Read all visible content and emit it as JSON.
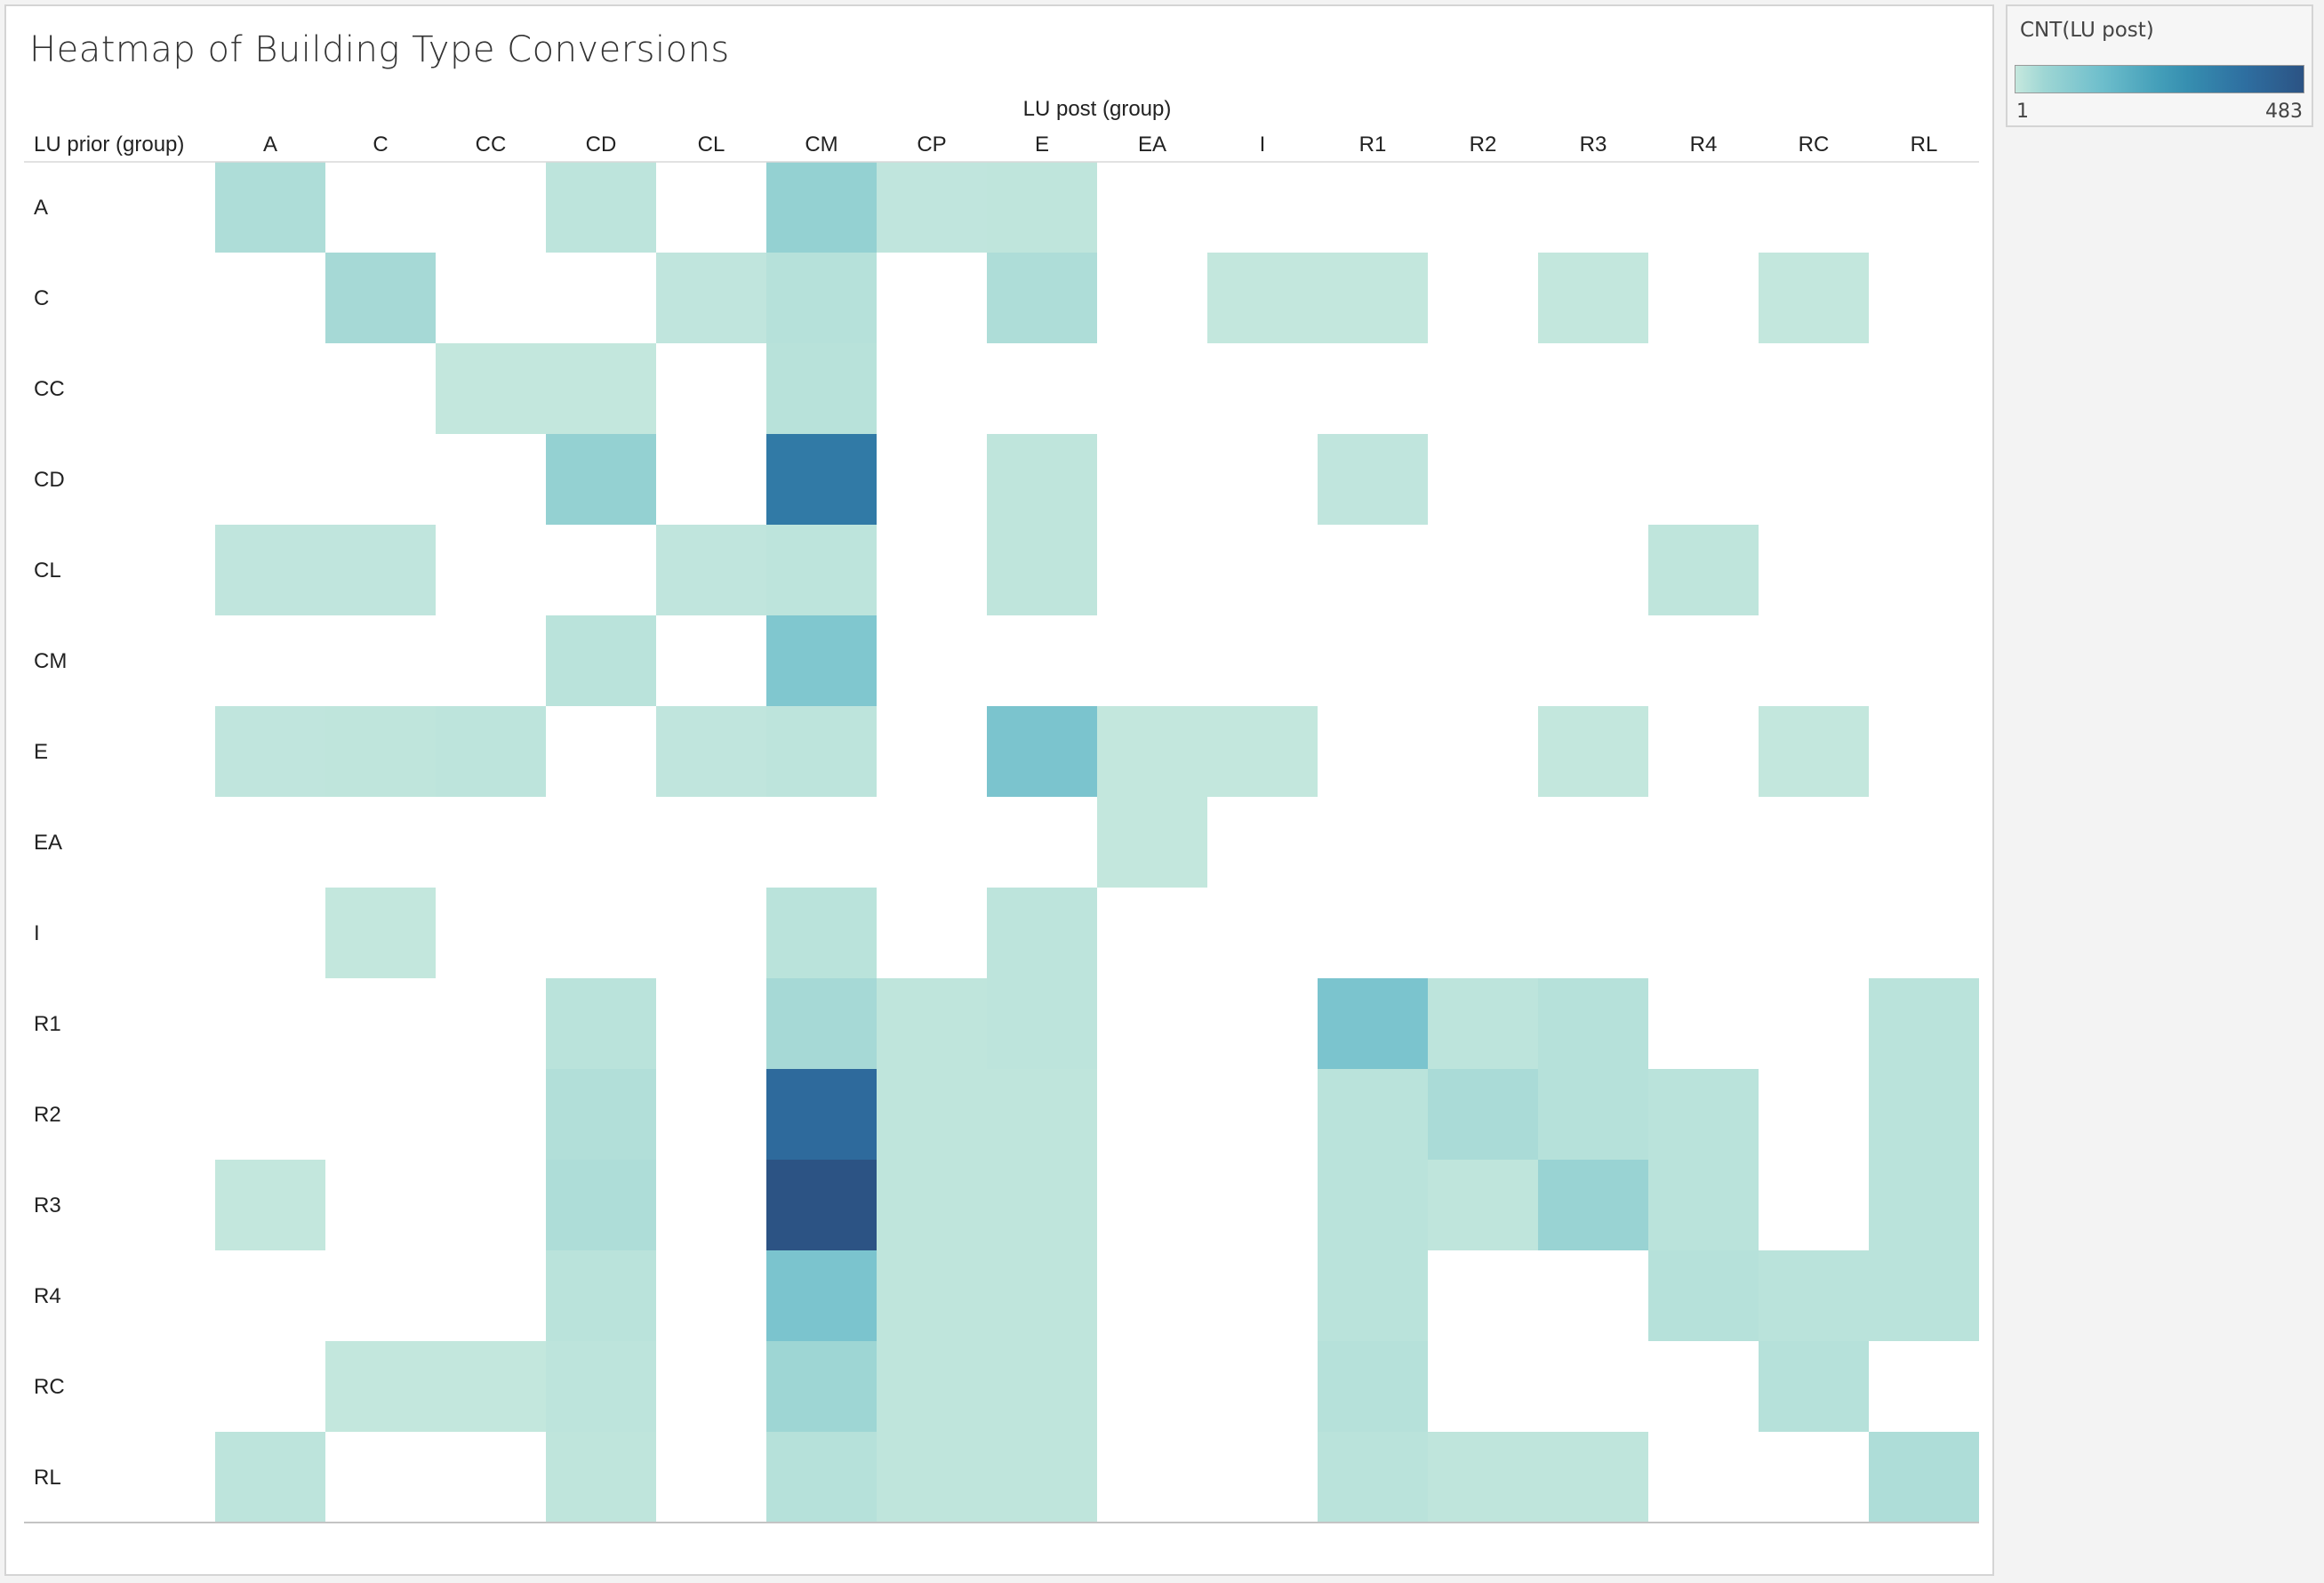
{
  "chart_data": {
    "type": "heatmap",
    "title": "Heatmap of Building Type Conversions",
    "xlabel": "LU post (group)",
    "ylabel": "LU prior (group)",
    "x_categories": [
      "A",
      "C",
      "CC",
      "CD",
      "CL",
      "CM",
      "CP",
      "E",
      "EA",
      "I",
      "R1",
      "R2",
      "R3",
      "R4",
      "RC",
      "RL"
    ],
    "y_categories": [
      "A",
      "C",
      "CC",
      "CD",
      "CL",
      "CM",
      "E",
      "EA",
      "I",
      "R1",
      "R2",
      "R3",
      "R4",
      "RC",
      "RL"
    ],
    "color_measure": "CNT(LU post)",
    "color_range": [
      1,
      483
    ],
    "color_min_hex": "#c6e8de",
    "color_max_hex": "#2c5384",
    "values": [
      [
        30,
        null,
        null,
        12,
        null,
        70,
        8,
        10,
        null,
        null,
        null,
        null,
        null,
        null,
        null,
        null
      ],
      [
        null,
        40,
        null,
        null,
        8,
        20,
        null,
        30,
        null,
        5,
        5,
        null,
        5,
        null,
        5,
        null
      ],
      [
        null,
        null,
        5,
        5,
        null,
        18,
        null,
        null,
        null,
        null,
        null,
        null,
        null,
        null,
        null,
        null
      ],
      [
        null,
        null,
        null,
        70,
        null,
        350,
        null,
        10,
        null,
        null,
        8,
        null,
        null,
        null,
        null,
        null
      ],
      [
        8,
        8,
        null,
        null,
        8,
        12,
        null,
        10,
        null,
        null,
        null,
        null,
        null,
        10,
        null,
        null
      ],
      [
        null,
        null,
        null,
        15,
        null,
        110,
        null,
        null,
        null,
        null,
        null,
        null,
        null,
        null,
        null,
        null
      ],
      [
        8,
        10,
        12,
        null,
        8,
        12,
        null,
        120,
        5,
        5,
        null,
        null,
        5,
        null,
        5,
        null
      ],
      [
        null,
        null,
        null,
        null,
        null,
        null,
        null,
        null,
        5,
        null,
        null,
        null,
        null,
        null,
        null,
        null
      ],
      [
        null,
        5,
        null,
        null,
        null,
        15,
        null,
        12,
        null,
        null,
        null,
        null,
        null,
        null,
        null,
        null
      ],
      [
        null,
        null,
        null,
        15,
        null,
        40,
        10,
        12,
        null,
        null,
        120,
        12,
        20,
        null,
        null,
        15
      ],
      [
        null,
        null,
        null,
        25,
        null,
        400,
        10,
        10,
        null,
        null,
        15,
        35,
        20,
        15,
        null,
        15
      ],
      [
        5,
        null,
        null,
        30,
        null,
        483,
        10,
        10,
        null,
        null,
        15,
        10,
        60,
        15,
        null,
        15
      ],
      [
        null,
        null,
        null,
        15,
        null,
        120,
        10,
        10,
        null,
        null,
        15,
        null,
        null,
        20,
        15,
        15
      ],
      [
        null,
        5,
        5,
        12,
        null,
        50,
        10,
        10,
        null,
        null,
        20,
        null,
        null,
        null,
        20,
        null
      ],
      [
        12,
        null,
        null,
        10,
        null,
        20,
        10,
        10,
        null,
        null,
        15,
        10,
        10,
        null,
        null,
        30
      ]
    ]
  }
}
